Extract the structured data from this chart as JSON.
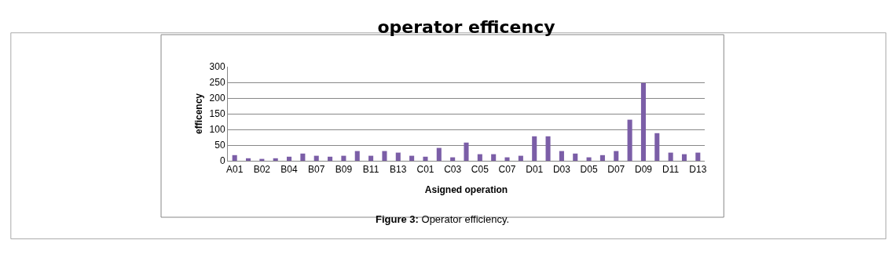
{
  "chart_data": {
    "type": "bar",
    "title": "operator efficency",
    "xlabel": "Asigned operation",
    "ylabel": "efficency",
    "categories": [
      "A01",
      null,
      "B02",
      null,
      "B04",
      null,
      "B07",
      null,
      "B09",
      null,
      "B11",
      null,
      "B13",
      null,
      "C01",
      null,
      "C03",
      null,
      "C05",
      null,
      "C07",
      null,
      "D01",
      null,
      "D03",
      null,
      "D05",
      null,
      "D07",
      null,
      "D09",
      null,
      "D11",
      null,
      "D13"
    ],
    "values": [
      18,
      8,
      6,
      8,
      13,
      23,
      16,
      13,
      16,
      31,
      16,
      31,
      26,
      16,
      13,
      41,
      11,
      58,
      21,
      21,
      11,
      16,
      78,
      78,
      31,
      23,
      11,
      18,
      31,
      131,
      248,
      88,
      26,
      21,
      26
    ],
    "color": "#7b5ea7",
    "ylim": [
      0,
      300
    ],
    "yticks": [
      0,
      50,
      100,
      150,
      200,
      250,
      300
    ],
    "grid": "y",
    "legend": false,
    "annotations": [
      "Figure 3: Operator efficiency."
    ]
  }
}
